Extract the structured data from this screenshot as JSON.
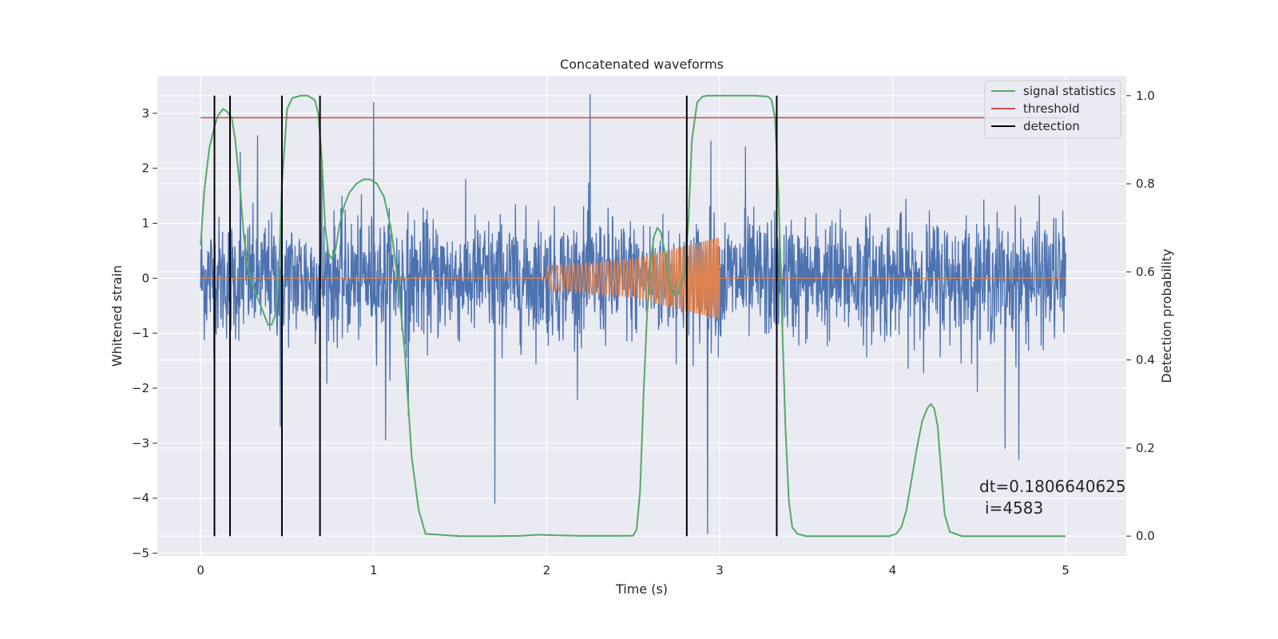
{
  "chart_data": {
    "type": "line",
    "title": "Concatenated waveforms",
    "xlabel": "Time (s)",
    "ylabel": "Whitened strain",
    "y2label": "Detection probability",
    "xlim": [
      -0.25,
      5.35
    ],
    "ylim": [
      -5.05,
      3.68
    ],
    "y2lim": [
      -0.045,
      1.045
    ],
    "xticks": [
      0,
      1,
      2,
      3,
      4,
      5
    ],
    "xtick_labels": [
      "0",
      "1",
      "2",
      "3",
      "4",
      "5"
    ],
    "yticks": [
      3,
      2,
      1,
      0,
      -1,
      -2,
      -3,
      -4,
      -5
    ],
    "ytick_labels": [
      "3",
      "2",
      "1",
      "0",
      "−1",
      "−2",
      "−3",
      "−4",
      "−5"
    ],
    "y2ticks": [
      1.0,
      0.8,
      0.6,
      0.4,
      0.2,
      0.0
    ],
    "y2tick_labels": [
      "1.0",
      "0.8",
      "0.6",
      "0.4",
      "0.2",
      "0.0"
    ],
    "grid": true,
    "legend": {
      "position": "top-right",
      "entries": [
        {
          "label": "signal statistics",
          "color": "#55a868"
        },
        {
          "label": "threshold",
          "color": "#c44e52"
        },
        {
          "label": "detection",
          "color": "#000000"
        }
      ]
    },
    "colors": {
      "strain": "#4c72b0",
      "injection": "#dd8452",
      "signal_statistics": "#55a868",
      "threshold": "#c44e52",
      "detection": "#000000",
      "axes_background": "#eaeaf2",
      "grid": "#ffffff"
    },
    "series": [
      {
        "role": "strain",
        "axis": "left",
        "x_range": [
          0,
          5
        ],
        "amplitude_envelope": [
          -1.6,
          1.6
        ],
        "spikes": [
          [
            0.23,
            2.3
          ],
          [
            0.33,
            2.6
          ],
          [
            1.0,
            3.2
          ],
          [
            2.25,
            3.35
          ],
          [
            2.95,
            2.5
          ],
          [
            1.7,
            -4.1
          ],
          [
            2.93,
            -4.65
          ],
          [
            3.33,
            -3.65
          ],
          [
            4.73,
            -3.3
          ],
          [
            1.07,
            -2.95
          ],
          [
            0.46,
            -2.7
          ],
          [
            4.65,
            -3.1
          ],
          [
            1.2,
            -2.5
          ],
          [
            0.7,
            2.25
          ],
          [
            3.15,
            2.4
          ]
        ]
      },
      {
        "role": "injection",
        "axis": "left",
        "x": [
          0,
          2.0,
          3.0,
          5.0
        ],
        "chirp_envelope": [
          [
            2.0,
            0.22
          ],
          [
            2.5,
            0.35
          ],
          [
            3.0,
            0.75
          ]
        ]
      },
      {
        "name": "signal statistics",
        "axis": "right",
        "x": [
          0,
          0.02,
          0.05,
          0.08,
          0.1,
          0.13,
          0.15,
          0.18,
          0.2,
          0.23,
          0.25,
          0.28,
          0.3,
          0.33,
          0.35,
          0.37,
          0.39,
          0.41,
          0.43,
          0.45,
          0.47,
          0.5,
          0.53,
          0.58,
          0.62,
          0.66,
          0.68,
          0.7,
          0.72,
          0.74,
          0.76,
          0.78,
          0.8,
          0.83,
          0.86,
          0.9,
          0.94,
          0.98,
          1.02,
          1.06,
          1.1,
          1.14,
          1.18,
          1.22,
          1.26,
          1.3,
          1.5,
          1.7,
          1.85,
          1.95,
          2.05,
          2.2,
          2.4,
          2.5,
          2.52,
          2.54,
          2.56,
          2.58,
          2.6,
          2.62,
          2.64,
          2.66,
          2.68,
          2.7,
          2.72,
          2.74,
          2.76,
          2.8,
          2.82,
          2.84,
          2.87,
          2.9,
          2.93,
          3.0,
          3.1,
          3.2,
          3.28,
          3.3,
          3.32,
          3.34,
          3.36,
          3.38,
          3.4,
          3.42,
          3.45,
          3.5,
          3.7,
          3.9,
          3.98,
          4.02,
          4.05,
          4.08,
          4.11,
          4.14,
          4.17,
          4.2,
          4.22,
          4.24,
          4.26,
          4.28,
          4.3,
          4.33,
          4.4,
          4.6,
          4.8,
          5.0
        ],
        "values": [
          0.66,
          0.78,
          0.88,
          0.93,
          0.955,
          0.97,
          0.965,
          0.95,
          0.9,
          0.78,
          0.68,
          0.6,
          0.57,
          0.54,
          0.52,
          0.5,
          0.48,
          0.48,
          0.5,
          0.57,
          0.8,
          0.97,
          0.995,
          1.0,
          1.0,
          0.99,
          0.96,
          0.86,
          0.7,
          0.64,
          0.63,
          0.65,
          0.7,
          0.75,
          0.78,
          0.8,
          0.81,
          0.81,
          0.8,
          0.77,
          0.7,
          0.58,
          0.42,
          0.18,
          0.06,
          0.005,
          0.0,
          0.0,
          0.0005,
          0.003,
          0.002,
          0.0005,
          0.0005,
          0.001,
          0.015,
          0.1,
          0.32,
          0.5,
          0.62,
          0.68,
          0.7,
          0.69,
          0.65,
          0.59,
          0.56,
          0.55,
          0.55,
          0.6,
          0.72,
          0.9,
          0.985,
          0.998,
          1.0,
          1.0,
          1.0,
          1.0,
          0.998,
          0.99,
          0.95,
          0.78,
          0.5,
          0.25,
          0.08,
          0.02,
          0.005,
          0.0,
          0.0,
          0.0,
          0.0,
          0.005,
          0.02,
          0.06,
          0.13,
          0.2,
          0.26,
          0.29,
          0.3,
          0.29,
          0.25,
          0.15,
          0.05,
          0.01,
          0.0,
          0.0,
          0.0,
          0.0
        ]
      },
      {
        "name": "threshold",
        "axis": "right",
        "x": [
          0,
          5
        ],
        "values": [
          0.95,
          0.95
        ]
      },
      {
        "name": "detection",
        "axis": "right",
        "vertical_lines_x": [
          0.08,
          0.17,
          0.47,
          0.69,
          2.81,
          3.33
        ],
        "y_range": [
          0,
          1
        ]
      }
    ],
    "annotation": {
      "dt_text": "dt=0.1806640625",
      "i_text": "i=4583"
    }
  }
}
